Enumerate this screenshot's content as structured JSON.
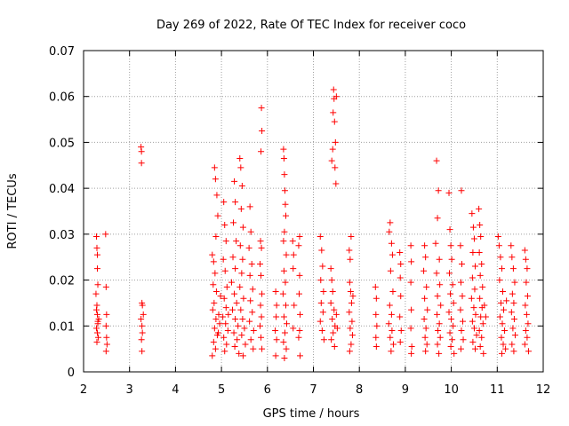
{
  "chart_data": {
    "type": "scatter",
    "title": "Day 269 of 2022, Rate Of TEC Index for receiver coco",
    "xlabel": "GPS time / hours",
    "ylabel": "ROTI / TECUs",
    "xlim": [
      2,
      12
    ],
    "ylim": [
      0,
      0.07
    ],
    "xticks": [
      "2",
      "3",
      "4",
      "5",
      "6",
      "7",
      "8",
      "9",
      "10",
      "11",
      "12"
    ],
    "yticks": [
      "0",
      "0.01",
      "0.02",
      "0.03",
      "0.04",
      "0.05",
      "0.06",
      "0.07"
    ],
    "grid": true,
    "marker": "plus",
    "color": "#ff0000",
    "points": [
      [
        2.28,
        0.0295
      ],
      [
        2.29,
        0.027
      ],
      [
        2.3,
        0.0255
      ],
      [
        2.3,
        0.0225
      ],
      [
        2.31,
        0.019
      ],
      [
        2.27,
        0.017
      ],
      [
        2.29,
        0.0145
      ],
      [
        2.3,
        0.0125
      ],
      [
        2.31,
        0.011
      ],
      [
        2.28,
        0.0095
      ],
      [
        2.3,
        0.0085
      ],
      [
        2.32,
        0.0075
      ],
      [
        2.29,
        0.0065
      ],
      [
        2.31,
        0.0105
      ],
      [
        2.28,
        0.0135
      ],
      [
        2.33,
        0.0115
      ],
      [
        2.48,
        0.03
      ],
      [
        2.49,
        0.0185
      ],
      [
        2.5,
        0.0125
      ],
      [
        2.49,
        0.01
      ],
      [
        2.5,
        0.0075
      ],
      [
        2.51,
        0.006
      ],
      [
        2.49,
        0.0045
      ],
      [
        3.25,
        0.049
      ],
      [
        3.26,
        0.048
      ],
      [
        3.26,
        0.0455
      ],
      [
        3.27,
        0.015
      ],
      [
        3.28,
        0.0145
      ],
      [
        3.25,
        0.0115
      ],
      [
        3.27,
        0.01
      ],
      [
        3.28,
        0.0085
      ],
      [
        3.26,
        0.007
      ],
      [
        3.27,
        0.0045
      ],
      [
        3.3,
        0.0125
      ],
      [
        4.85,
        0.0445
      ],
      [
        4.87,
        0.042
      ],
      [
        4.9,
        0.0385
      ],
      [
        4.92,
        0.034
      ],
      [
        4.88,
        0.0295
      ],
      [
        4.8,
        0.0255
      ],
      [
        4.83,
        0.024
      ],
      [
        4.86,
        0.0215
      ],
      [
        4.82,
        0.019
      ],
      [
        4.89,
        0.0175
      ],
      [
        4.84,
        0.015
      ],
      [
        4.81,
        0.0135
      ],
      [
        4.88,
        0.0115
      ],
      [
        4.85,
        0.0095
      ],
      [
        4.91,
        0.008
      ],
      [
        4.83,
        0.0065
      ],
      [
        4.87,
        0.005
      ],
      [
        4.8,
        0.0035
      ],
      [
        4.94,
        0.0125
      ],
      [
        4.96,
        0.0105
      ],
      [
        4.93,
        0.0085
      ],
      [
        4.98,
        0.0165
      ],
      [
        5.05,
        0.037
      ],
      [
        5.07,
        0.032
      ],
      [
        5.1,
        0.0285
      ],
      [
        5.04,
        0.0245
      ],
      [
        5.08,
        0.022
      ],
      [
        5.12,
        0.0185
      ],
      [
        5.06,
        0.016
      ],
      [
        5.1,
        0.014
      ],
      [
        5.03,
        0.012
      ],
      [
        5.09,
        0.0105
      ],
      [
        5.14,
        0.009
      ],
      [
        5.05,
        0.0075
      ],
      [
        5.11,
        0.006
      ],
      [
        5.07,
        0.0045
      ],
      [
        5.15,
        0.0125
      ],
      [
        5.28,
        0.0415
      ],
      [
        5.3,
        0.037
      ],
      [
        5.26,
        0.0325
      ],
      [
        5.32,
        0.0285
      ],
      [
        5.25,
        0.025
      ],
      [
        5.3,
        0.0225
      ],
      [
        5.22,
        0.0195
      ],
      [
        5.28,
        0.017
      ],
      [
        5.33,
        0.015
      ],
      [
        5.24,
        0.0135
      ],
      [
        5.3,
        0.0115
      ],
      [
        5.36,
        0.01
      ],
      [
        5.27,
        0.0085
      ],
      [
        5.34,
        0.007
      ],
      [
        5.29,
        0.0055
      ],
      [
        5.38,
        0.004
      ],
      [
        5.4,
        0.0465
      ],
      [
        5.42,
        0.0445
      ],
      [
        5.45,
        0.0405
      ],
      [
        5.43,
        0.0355
      ],
      [
        5.47,
        0.0315
      ],
      [
        5.41,
        0.0275
      ],
      [
        5.46,
        0.0245
      ],
      [
        5.44,
        0.0215
      ],
      [
        5.4,
        0.0185
      ],
      [
        5.48,
        0.016
      ],
      [
        5.42,
        0.0135
      ],
      [
        5.46,
        0.0115
      ],
      [
        5.5,
        0.0095
      ],
      [
        5.44,
        0.008
      ],
      [
        5.52,
        0.006
      ],
      [
        5.47,
        0.0035
      ],
      [
        5.62,
        0.036
      ],
      [
        5.64,
        0.0305
      ],
      [
        5.6,
        0.027
      ],
      [
        5.66,
        0.0235
      ],
      [
        5.62,
        0.021
      ],
      [
        5.68,
        0.018
      ],
      [
        5.63,
        0.0155
      ],
      [
        5.67,
        0.013
      ],
      [
        5.61,
        0.011
      ],
      [
        5.7,
        0.009
      ],
      [
        5.64,
        0.007
      ],
      [
        5.69,
        0.005
      ],
      [
        5.87,
        0.0575
      ],
      [
        5.88,
        0.0525
      ],
      [
        5.86,
        0.048
      ],
      [
        5.85,
        0.0285
      ],
      [
        5.87,
        0.027
      ],
      [
        5.84,
        0.0235
      ],
      [
        5.86,
        0.021
      ],
      [
        5.88,
        0.017
      ],
      [
        5.85,
        0.0145
      ],
      [
        5.87,
        0.012
      ],
      [
        5.84,
        0.01
      ],
      [
        5.86,
        0.0075
      ],
      [
        5.88,
        0.005
      ],
      [
        6.18,
        0.0175
      ],
      [
        6.2,
        0.0145
      ],
      [
        6.19,
        0.012
      ],
      [
        6.17,
        0.009
      ],
      [
        6.2,
        0.007
      ],
      [
        6.18,
        0.0035
      ],
      [
        6.35,
        0.0485
      ],
      [
        6.36,
        0.0465
      ],
      [
        6.37,
        0.043
      ],
      [
        6.38,
        0.0395
      ],
      [
        6.39,
        0.0365
      ],
      [
        6.4,
        0.034
      ],
      [
        6.37,
        0.0305
      ],
      [
        6.35,
        0.0285
      ],
      [
        6.41,
        0.0255
      ],
      [
        6.36,
        0.022
      ],
      [
        6.39,
        0.0195
      ],
      [
        6.34,
        0.017
      ],
      [
        6.4,
        0.0145
      ],
      [
        6.36,
        0.012
      ],
      [
        6.42,
        0.0105
      ],
      [
        6.38,
        0.0085
      ],
      [
        6.35,
        0.0065
      ],
      [
        6.41,
        0.005
      ],
      [
        6.37,
        0.003
      ],
      [
        6.55,
        0.0285
      ],
      [
        6.57,
        0.0255
      ],
      [
        6.56,
        0.0225
      ],
      [
        6.58,
        0.0145
      ],
      [
        6.56,
        0.0095
      ],
      [
        6.7,
        0.0295
      ],
      [
        6.68,
        0.0275
      ],
      [
        6.7,
        0.021
      ],
      [
        6.69,
        0.017
      ],
      [
        6.71,
        0.0125
      ],
      [
        6.7,
        0.009
      ],
      [
        6.68,
        0.0075
      ],
      [
        6.71,
        0.0035
      ],
      [
        7.15,
        0.0295
      ],
      [
        7.18,
        0.0265
      ],
      [
        7.2,
        0.023
      ],
      [
        7.16,
        0.02
      ],
      [
        7.22,
        0.0175
      ],
      [
        7.17,
        0.015
      ],
      [
        7.21,
        0.013
      ],
      [
        7.15,
        0.011
      ],
      [
        7.19,
        0.009
      ],
      [
        7.23,
        0.007
      ],
      [
        7.4,
        0.046
      ],
      [
        7.42,
        0.0485
      ],
      [
        7.44,
        0.0615
      ],
      [
        7.45,
        0.0595
      ],
      [
        7.43,
        0.0565
      ],
      [
        7.46,
        0.0545
      ],
      [
        7.48,
        0.05
      ],
      [
        7.47,
        0.0445
      ],
      [
        7.49,
        0.041
      ],
      [
        7.5,
        0.06
      ],
      [
        7.38,
        0.0225
      ],
      [
        7.4,
        0.02
      ],
      [
        7.42,
        0.0175
      ],
      [
        7.38,
        0.015
      ],
      [
        7.45,
        0.0135
      ],
      [
        7.41,
        0.0115
      ],
      [
        7.47,
        0.01
      ],
      [
        7.43,
        0.0085
      ],
      [
        7.39,
        0.007
      ],
      [
        7.46,
        0.0055
      ],
      [
        7.5,
        0.0125
      ],
      [
        7.52,
        0.0095
      ],
      [
        7.78,
        0.0265
      ],
      [
        7.8,
        0.0245
      ],
      [
        7.82,
        0.0295
      ],
      [
        7.79,
        0.0195
      ],
      [
        7.81,
        0.0175
      ],
      [
        7.83,
        0.015
      ],
      [
        7.78,
        0.013
      ],
      [
        7.84,
        0.011
      ],
      [
        7.8,
        0.0095
      ],
      [
        7.85,
        0.008
      ],
      [
        7.82,
        0.006
      ],
      [
        7.79,
        0.0045
      ],
      [
        7.86,
        0.0165
      ],
      [
        8.35,
        0.0185
      ],
      [
        8.37,
        0.016
      ],
      [
        8.36,
        0.0125
      ],
      [
        8.38,
        0.01
      ],
      [
        8.36,
        0.0075
      ],
      [
        8.37,
        0.0055
      ],
      [
        8.65,
        0.0305
      ],
      [
        8.67,
        0.0325
      ],
      [
        8.7,
        0.028
      ],
      [
        8.72,
        0.0255
      ],
      [
        8.68,
        0.022
      ],
      [
        8.73,
        0.0175
      ],
      [
        8.66,
        0.0145
      ],
      [
        8.7,
        0.0125
      ],
      [
        8.64,
        0.0105
      ],
      [
        8.71,
        0.009
      ],
      [
        8.67,
        0.0075
      ],
      [
        8.74,
        0.006
      ],
      [
        8.69,
        0.0045
      ],
      [
        8.88,
        0.026
      ],
      [
        8.9,
        0.0235
      ],
      [
        8.89,
        0.0205
      ],
      [
        8.9,
        0.0165
      ],
      [
        8.88,
        0.012
      ],
      [
        8.91,
        0.009
      ],
      [
        8.89,
        0.0065
      ],
      [
        9.12,
        0.0275
      ],
      [
        9.13,
        0.024
      ],
      [
        9.12,
        0.0195
      ],
      [
        9.13,
        0.0135
      ],
      [
        9.12,
        0.0095
      ],
      [
        9.14,
        0.0055
      ],
      [
        9.13,
        0.004
      ],
      [
        9.42,
        0.0275
      ],
      [
        9.44,
        0.025
      ],
      [
        9.4,
        0.022
      ],
      [
        9.46,
        0.0185
      ],
      [
        9.42,
        0.016
      ],
      [
        9.48,
        0.0135
      ],
      [
        9.41,
        0.0115
      ],
      [
        9.45,
        0.0095
      ],
      [
        9.43,
        0.0075
      ],
      [
        9.47,
        0.006
      ],
      [
        9.44,
        0.0045
      ],
      [
        9.68,
        0.046
      ],
      [
        9.72,
        0.0395
      ],
      [
        9.7,
        0.0335
      ],
      [
        9.66,
        0.028
      ],
      [
        9.74,
        0.0245
      ],
      [
        9.68,
        0.0215
      ],
      [
        9.75,
        0.019
      ],
      [
        9.7,
        0.0165
      ],
      [
        9.77,
        0.0145
      ],
      [
        9.69,
        0.0125
      ],
      [
        9.74,
        0.0105
      ],
      [
        9.71,
        0.009
      ],
      [
        9.76,
        0.0075
      ],
      [
        9.7,
        0.006
      ],
      [
        9.73,
        0.004
      ],
      [
        9.95,
        0.039
      ],
      [
        9.97,
        0.031
      ],
      [
        9.99,
        0.0275
      ],
      [
        10.01,
        0.0245
      ],
      [
        9.96,
        0.0215
      ],
      [
        10.03,
        0.019
      ],
      [
        9.98,
        0.017
      ],
      [
        10.05,
        0.015
      ],
      [
        9.95,
        0.013
      ],
      [
        10.0,
        0.0115
      ],
      [
        10.04,
        0.01
      ],
      [
        9.97,
        0.0085
      ],
      [
        10.02,
        0.007
      ],
      [
        9.99,
        0.0055
      ],
      [
        10.06,
        0.004
      ],
      [
        10.22,
        0.0395
      ],
      [
        10.2,
        0.0275
      ],
      [
        10.23,
        0.0235
      ],
      [
        10.21,
        0.0195
      ],
      [
        10.24,
        0.0165
      ],
      [
        10.2,
        0.0135
      ],
      [
        10.25,
        0.011
      ],
      [
        10.22,
        0.009
      ],
      [
        10.26,
        0.007
      ],
      [
        10.21,
        0.005
      ],
      [
        10.45,
        0.0345
      ],
      [
        10.48,
        0.0315
      ],
      [
        10.5,
        0.029
      ],
      [
        10.47,
        0.026
      ],
      [
        10.52,
        0.023
      ],
      [
        10.46,
        0.0205
      ],
      [
        10.51,
        0.018
      ],
      [
        10.44,
        0.016
      ],
      [
        10.49,
        0.014
      ],
      [
        10.53,
        0.0125
      ],
      [
        10.46,
        0.011
      ],
      [
        10.5,
        0.0095
      ],
      [
        10.55,
        0.008
      ],
      [
        10.47,
        0.0065
      ],
      [
        10.52,
        0.005
      ],
      [
        10.6,
        0.0355
      ],
      [
        10.62,
        0.032
      ],
      [
        10.64,
        0.0295
      ],
      [
        10.61,
        0.026
      ],
      [
        10.66,
        0.0235
      ],
      [
        10.63,
        0.021
      ],
      [
        10.68,
        0.0185
      ],
      [
        10.62,
        0.016
      ],
      [
        10.67,
        0.014
      ],
      [
        10.64,
        0.012
      ],
      [
        10.69,
        0.0105
      ],
      [
        10.61,
        0.009
      ],
      [
        10.66,
        0.0075
      ],
      [
        10.63,
        0.0055
      ],
      [
        10.7,
        0.004
      ],
      [
        10.72,
        0.0145
      ],
      [
        10.75,
        0.012
      ],
      [
        11.02,
        0.0295
      ],
      [
        11.04,
        0.0275
      ],
      [
        11.07,
        0.025
      ],
      [
        11.1,
        0.0225
      ],
      [
        11.05,
        0.02
      ],
      [
        11.12,
        0.0175
      ],
      [
        11.08,
        0.015
      ],
      [
        11.14,
        0.0135
      ],
      [
        11.06,
        0.012
      ],
      [
        11.11,
        0.0105
      ],
      [
        11.16,
        0.009
      ],
      [
        11.09,
        0.0075
      ],
      [
        11.13,
        0.006
      ],
      [
        11.18,
        0.005
      ],
      [
        11.1,
        0.004
      ],
      [
        11.2,
        0.0155
      ],
      [
        11.3,
        0.0275
      ],
      [
        11.32,
        0.025
      ],
      [
        11.35,
        0.0225
      ],
      [
        11.38,
        0.0195
      ],
      [
        11.33,
        0.017
      ],
      [
        11.36,
        0.015
      ],
      [
        11.31,
        0.013
      ],
      [
        11.37,
        0.0115
      ],
      [
        11.34,
        0.0095
      ],
      [
        11.39,
        0.008
      ],
      [
        11.32,
        0.006
      ],
      [
        11.36,
        0.0045
      ],
      [
        11.6,
        0.0265
      ],
      [
        11.62,
        0.0245
      ],
      [
        11.65,
        0.0225
      ],
      [
        11.63,
        0.0195
      ],
      [
        11.66,
        0.0165
      ],
      [
        11.61,
        0.0145
      ],
      [
        11.64,
        0.0125
      ],
      [
        11.67,
        0.0105
      ],
      [
        11.62,
        0.009
      ],
      [
        11.65,
        0.0075
      ],
      [
        11.6,
        0.006
      ],
      [
        11.68,
        0.0045
      ]
    ]
  }
}
